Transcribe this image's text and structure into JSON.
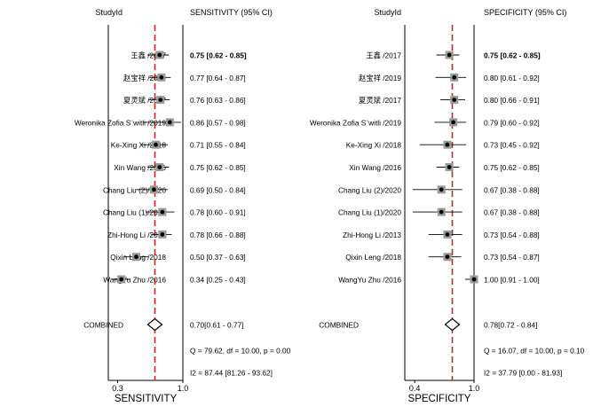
{
  "chart_data": [
    {
      "type": "forest",
      "header_left": "StudyId",
      "header_right": "SENSITIVITY (95% CI)",
      "xlabel": "SENSITIVITY",
      "xlim": [
        0.2,
        1.0
      ],
      "ticks": [
        {
          "value": 0.3,
          "label": "0.3"
        },
        {
          "value": 1.0,
          "label": "1.0"
        }
      ],
      "reference_line": 0.7,
      "studies": [
        {
          "name": "王鑫 /2017",
          "est": 0.75,
          "lo": 0.62,
          "hi": 0.85,
          "ci": "0.75 [0.62 - 0.85]"
        },
        {
          "name": "赵宝祥 /2019",
          "est": 0.77,
          "lo": 0.64,
          "hi": 0.87,
          "ci": "0.77 [0.64 - 0.87]"
        },
        {
          "name": "夏灵斌 /2017",
          "est": 0.76,
          "lo": 0.63,
          "hi": 0.86,
          "ci": "0.76 [0.63 - 0.86]"
        },
        {
          "name": "Weronika Zofia S¨witli /2019",
          "est": 0.86,
          "lo": 0.57,
          "hi": 0.98,
          "ci": "0.86 [0.57 - 0.98]"
        },
        {
          "name": "Ke-Xing Xi /2018",
          "est": 0.71,
          "lo": 0.55,
          "hi": 0.84,
          "ci": "0.71 [0.55 - 0.84]"
        },
        {
          "name": "Xin Wang /2016",
          "est": 0.75,
          "lo": 0.62,
          "hi": 0.85,
          "ci": "0.75 [0.62 - 0.85]"
        },
        {
          "name": "Chang Liu (2)/2020",
          "est": 0.69,
          "lo": 0.5,
          "hi": 0.84,
          "ci": "0.69 [0.50 - 0.84]"
        },
        {
          "name": "Chang Liu (1)/2020",
          "est": 0.78,
          "lo": 0.6,
          "hi": 0.91,
          "ci": "0.78 [0.60 - 0.91]"
        },
        {
          "name": "Zhi-Hong Li /2013",
          "est": 0.78,
          "lo": 0.66,
          "hi": 0.88,
          "ci": "0.78 [0.66 - 0.88]"
        },
        {
          "name": "Qixin Leng /2018",
          "est": 0.5,
          "lo": 0.37,
          "hi": 0.63,
          "ci": "0.50 [0.37 - 0.63]"
        },
        {
          "name": "WangYu Zhu /2016",
          "est": 0.34,
          "lo": 0.25,
          "hi": 0.43,
          "ci": "0.34 [0.25 - 0.43]"
        }
      ],
      "combined": {
        "name": "COMBINED",
        "est": 0.7,
        "lo": 0.61,
        "hi": 0.77,
        "ci": "0.70[0.61 - 0.77]"
      },
      "stats": [
        "Q = 79.62, df = 10.00, p =  0.00",
        "I2 = 87.44 [81.26 - 93.62]"
      ],
      "colors": {
        "reference_line": "#c0282d",
        "marker": "#000000",
        "box": "#9a9a9a"
      }
    },
    {
      "type": "forest",
      "header_left": "StudyId",
      "header_right": "SPECIFICITY (95% CI)",
      "xlabel": "SPECIFICITY",
      "xlim": [
        0.3,
        1.0
      ],
      "ticks": [
        {
          "value": 0.4,
          "label": "0.4"
        },
        {
          "value": 1.0,
          "label": "1.0"
        }
      ],
      "reference_line": 0.78,
      "studies": [
        {
          "name": "王鑫 /2017",
          "est": 0.75,
          "lo": 0.62,
          "hi": 0.85,
          "ci": "0.75 [0.62 - 0.85]"
        },
        {
          "name": "赵宝祥 /2019",
          "est": 0.8,
          "lo": 0.61,
          "hi": 0.92,
          "ci": "0.80 [0.61 - 0.92]"
        },
        {
          "name": "夏灵斌 /2017",
          "est": 0.8,
          "lo": 0.66,
          "hi": 0.91,
          "ci": "0.80 [0.66 - 0.91]"
        },
        {
          "name": "Weronika Zofia S¨witli /2019",
          "est": 0.79,
          "lo": 0.6,
          "hi": 0.92,
          "ci": "0.79 [0.60 - 0.92]"
        },
        {
          "name": "Ke-Xing Xi /2018",
          "est": 0.73,
          "lo": 0.45,
          "hi": 0.92,
          "ci": "0.73 [0.45 - 0.92]"
        },
        {
          "name": "Xin Wang /2016",
          "est": 0.75,
          "lo": 0.62,
          "hi": 0.85,
          "ci": "0.75 [0.62 - 0.85]"
        },
        {
          "name": "Chang Liu (2)/2020",
          "est": 0.67,
          "lo": 0.38,
          "hi": 0.88,
          "ci": "0.67 [0.38 - 0.88]"
        },
        {
          "name": "Chang Liu (1)/2020",
          "est": 0.67,
          "lo": 0.38,
          "hi": 0.88,
          "ci": "0.67 [0.38 - 0.88]"
        },
        {
          "name": "Zhi-Hong Li /2013",
          "est": 0.73,
          "lo": 0.54,
          "hi": 0.88,
          "ci": "0.73 [0.54 - 0.88]"
        },
        {
          "name": "Qixin Leng /2018",
          "est": 0.73,
          "lo": 0.54,
          "hi": 0.87,
          "ci": "0.73 [0.54 - 0.87]"
        },
        {
          "name": "WangYu Zhu /2016",
          "est": 1.0,
          "lo": 0.91,
          "hi": 1.0,
          "ci": "1.00 [0.91 - 1.00]"
        }
      ],
      "combined": {
        "name": "COMBINED",
        "est": 0.78,
        "lo": 0.72,
        "hi": 0.84,
        "ci": "0.78[0.72 - 0.84]"
      },
      "stats": [
        "Q = 16.07, df = 10.00, p =  0.10",
        "I2 = 37.79 [0.00 - 81.93]"
      ],
      "colors": {
        "reference_line": "#c0282d",
        "marker": "#000000",
        "box": "#9a9a9a"
      }
    }
  ]
}
